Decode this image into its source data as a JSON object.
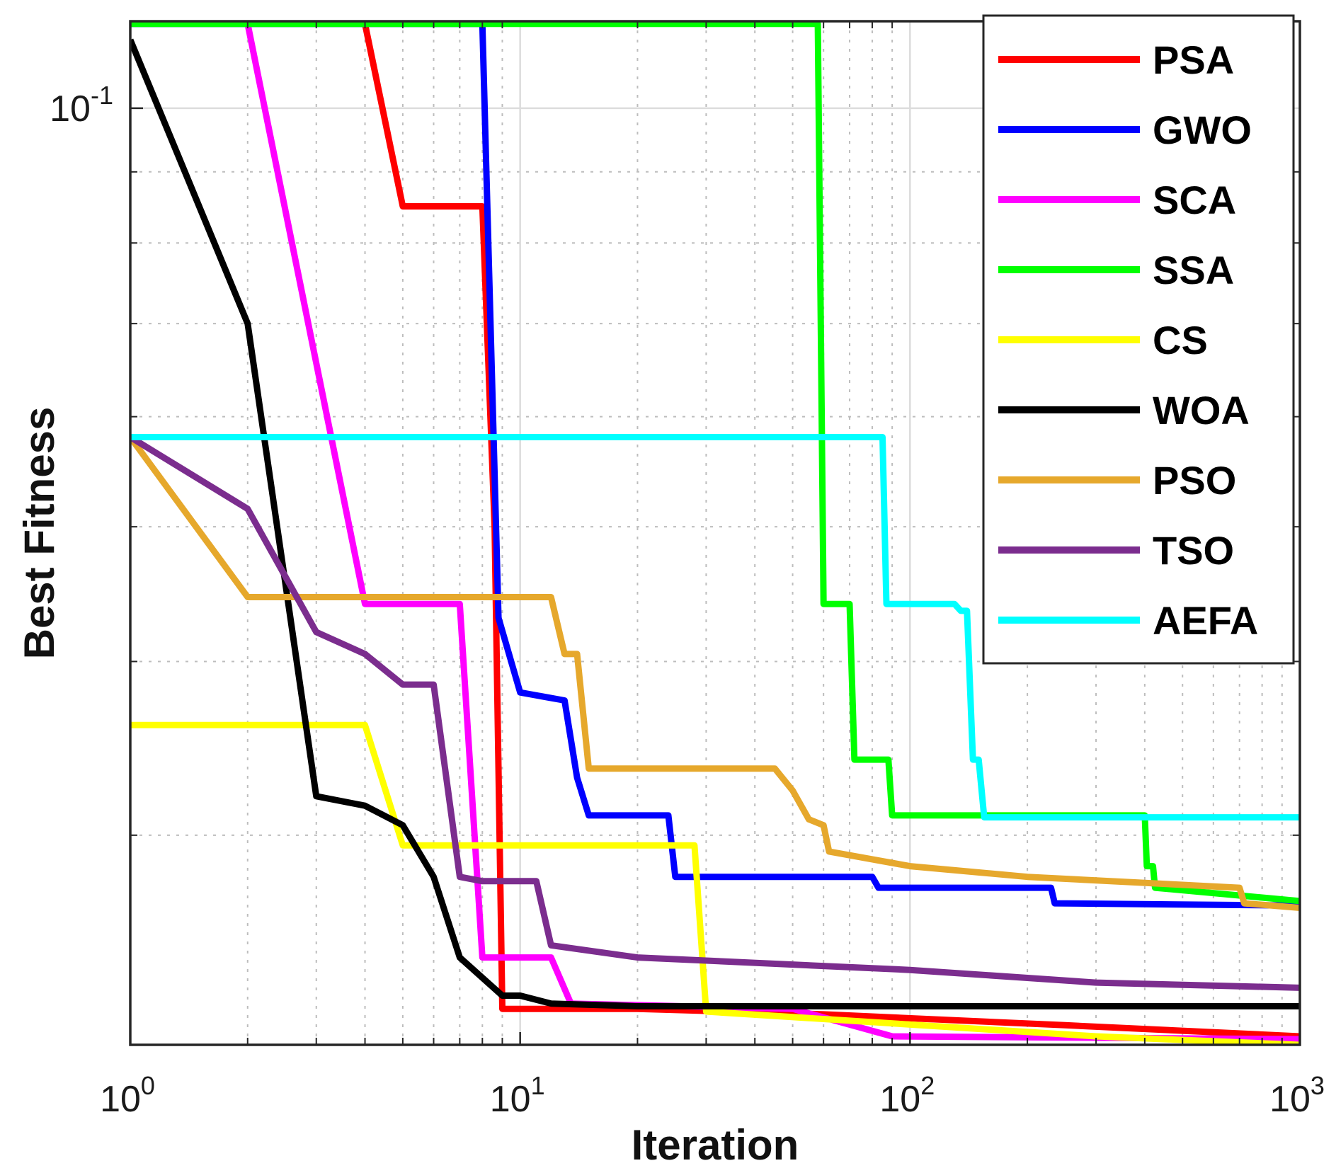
{
  "chart_data": {
    "type": "line",
    "title": "",
    "xlabel": "Iteration",
    "ylabel": "Best Fitness",
    "xscale": "log",
    "yscale": "log",
    "xlim": [
      1,
      1000
    ],
    "ylim": [
      0.0212,
      0.1155
    ],
    "x_ticks": [
      {
        "value": 1,
        "base": "10",
        "exp": "0"
      },
      {
        "value": 10,
        "base": "10",
        "exp": "1"
      },
      {
        "value": 100,
        "base": "10",
        "exp": "2"
      },
      {
        "value": 1000,
        "base": "10",
        "exp": "3"
      }
    ],
    "y_ticks": [
      {
        "value": 0.1,
        "base": "10",
        "exp": "-1"
      }
    ],
    "y_minor_ticks": [
      0.03,
      0.04,
      0.05,
      0.06,
      0.07,
      0.08,
      0.09
    ],
    "grid": true,
    "legend_position": "top-right",
    "series": [
      {
        "name": "PSA",
        "color": "#ff0000",
        "points": [
          [
            4,
            0.115
          ],
          [
            5,
            0.085
          ],
          [
            8,
            0.085
          ],
          [
            8.6,
            0.05
          ],
          [
            9,
            0.0225
          ],
          [
            20,
            0.0225
          ],
          [
            60,
            0.0223
          ],
          [
            250,
            0.0219
          ],
          [
            1000,
            0.0215
          ]
        ]
      },
      {
        "name": "GWO",
        "color": "#0000ff",
        "points": [
          [
            1,
            0.115
          ],
          [
            8,
            0.115
          ],
          [
            8.8,
            0.043
          ],
          [
            10,
            0.038
          ],
          [
            13,
            0.0375
          ],
          [
            14,
            0.033
          ],
          [
            15,
            0.031
          ],
          [
            24,
            0.031
          ],
          [
            25,
            0.028
          ],
          [
            80,
            0.028
          ],
          [
            83,
            0.0275
          ],
          [
            230,
            0.0275
          ],
          [
            235,
            0.0268
          ],
          [
            1000,
            0.0267
          ]
        ]
      },
      {
        "name": "SCA",
        "color": "#ff00ff",
        "points": [
          [
            2,
            0.115
          ],
          [
            4,
            0.044
          ],
          [
            7,
            0.044
          ],
          [
            8,
            0.0245
          ],
          [
            12,
            0.0245
          ],
          [
            13.5,
            0.0227
          ],
          [
            50,
            0.0225
          ],
          [
            90,
            0.0215
          ],
          [
            1000,
            0.0214
          ]
        ]
      },
      {
        "name": "SSA",
        "color": "#00ff00",
        "points": [
          [
            1,
            0.115
          ],
          [
            58,
            0.115
          ],
          [
            60,
            0.044
          ],
          [
            70,
            0.044
          ],
          [
            72,
            0.034
          ],
          [
            88,
            0.034
          ],
          [
            90,
            0.031
          ],
          [
            400,
            0.031
          ],
          [
            405,
            0.0285
          ],
          [
            420,
            0.0285
          ],
          [
            425,
            0.0275
          ],
          [
            1000,
            0.0269
          ]
        ]
      },
      {
        "name": "CS",
        "color": "#ffff00",
        "points": [
          [
            1,
            0.036
          ],
          [
            4,
            0.036
          ],
          [
            5,
            0.0295
          ],
          [
            28,
            0.0295
          ],
          [
            30,
            0.0224
          ],
          [
            300,
            0.0215
          ],
          [
            1000,
            0.0212
          ]
        ]
      },
      {
        "name": "WOA",
        "color": "#000000",
        "points": [
          [
            1,
            0.112
          ],
          [
            2,
            0.07
          ],
          [
            3,
            0.032
          ],
          [
            4,
            0.0315
          ],
          [
            5,
            0.0305
          ],
          [
            6,
            0.028
          ],
          [
            7,
            0.0245
          ],
          [
            9,
            0.023
          ],
          [
            10,
            0.023
          ],
          [
            12,
            0.0227
          ],
          [
            20,
            0.0226
          ],
          [
            100,
            0.0226
          ],
          [
            1000,
            0.0226
          ]
        ]
      },
      {
        "name": "PSO",
        "color": "#e6a82c",
        "points": [
          [
            1,
            0.058
          ],
          [
            2,
            0.0445
          ],
          [
            12,
            0.0445
          ],
          [
            13,
            0.0405
          ],
          [
            14,
            0.0405
          ],
          [
            15,
            0.0335
          ],
          [
            45,
            0.0335
          ],
          [
            50,
            0.0323
          ],
          [
            55,
            0.0308
          ],
          [
            60,
            0.0305
          ],
          [
            62,
            0.0292
          ],
          [
            100,
            0.0285
          ],
          [
            200,
            0.028
          ],
          [
            700,
            0.0275
          ],
          [
            720,
            0.0268
          ],
          [
            1000,
            0.0266
          ]
        ]
      },
      {
        "name": "TSO",
        "color": "#7b2d8e",
        "points": [
          [
            1,
            0.058
          ],
          [
            2,
            0.0515
          ],
          [
            3,
            0.042
          ],
          [
            4,
            0.0405
          ],
          [
            5,
            0.0385
          ],
          [
            6,
            0.0385
          ],
          [
            7,
            0.028
          ],
          [
            8,
            0.0278
          ],
          [
            11,
            0.0278
          ],
          [
            12,
            0.025
          ],
          [
            20,
            0.0245
          ],
          [
            100,
            0.024
          ],
          [
            300,
            0.0235
          ],
          [
            1000,
            0.0233
          ]
        ]
      },
      {
        "name": "AEFA",
        "color": "#00ffff",
        "points": [
          [
            1,
            0.058
          ],
          [
            85,
            0.058
          ],
          [
            87,
            0.044
          ],
          [
            130,
            0.044
          ],
          [
            135,
            0.0435
          ],
          [
            140,
            0.0435
          ],
          [
            145,
            0.034
          ],
          [
            150,
            0.034
          ],
          [
            155,
            0.0309
          ],
          [
            1000,
            0.0309
          ]
        ]
      }
    ]
  }
}
